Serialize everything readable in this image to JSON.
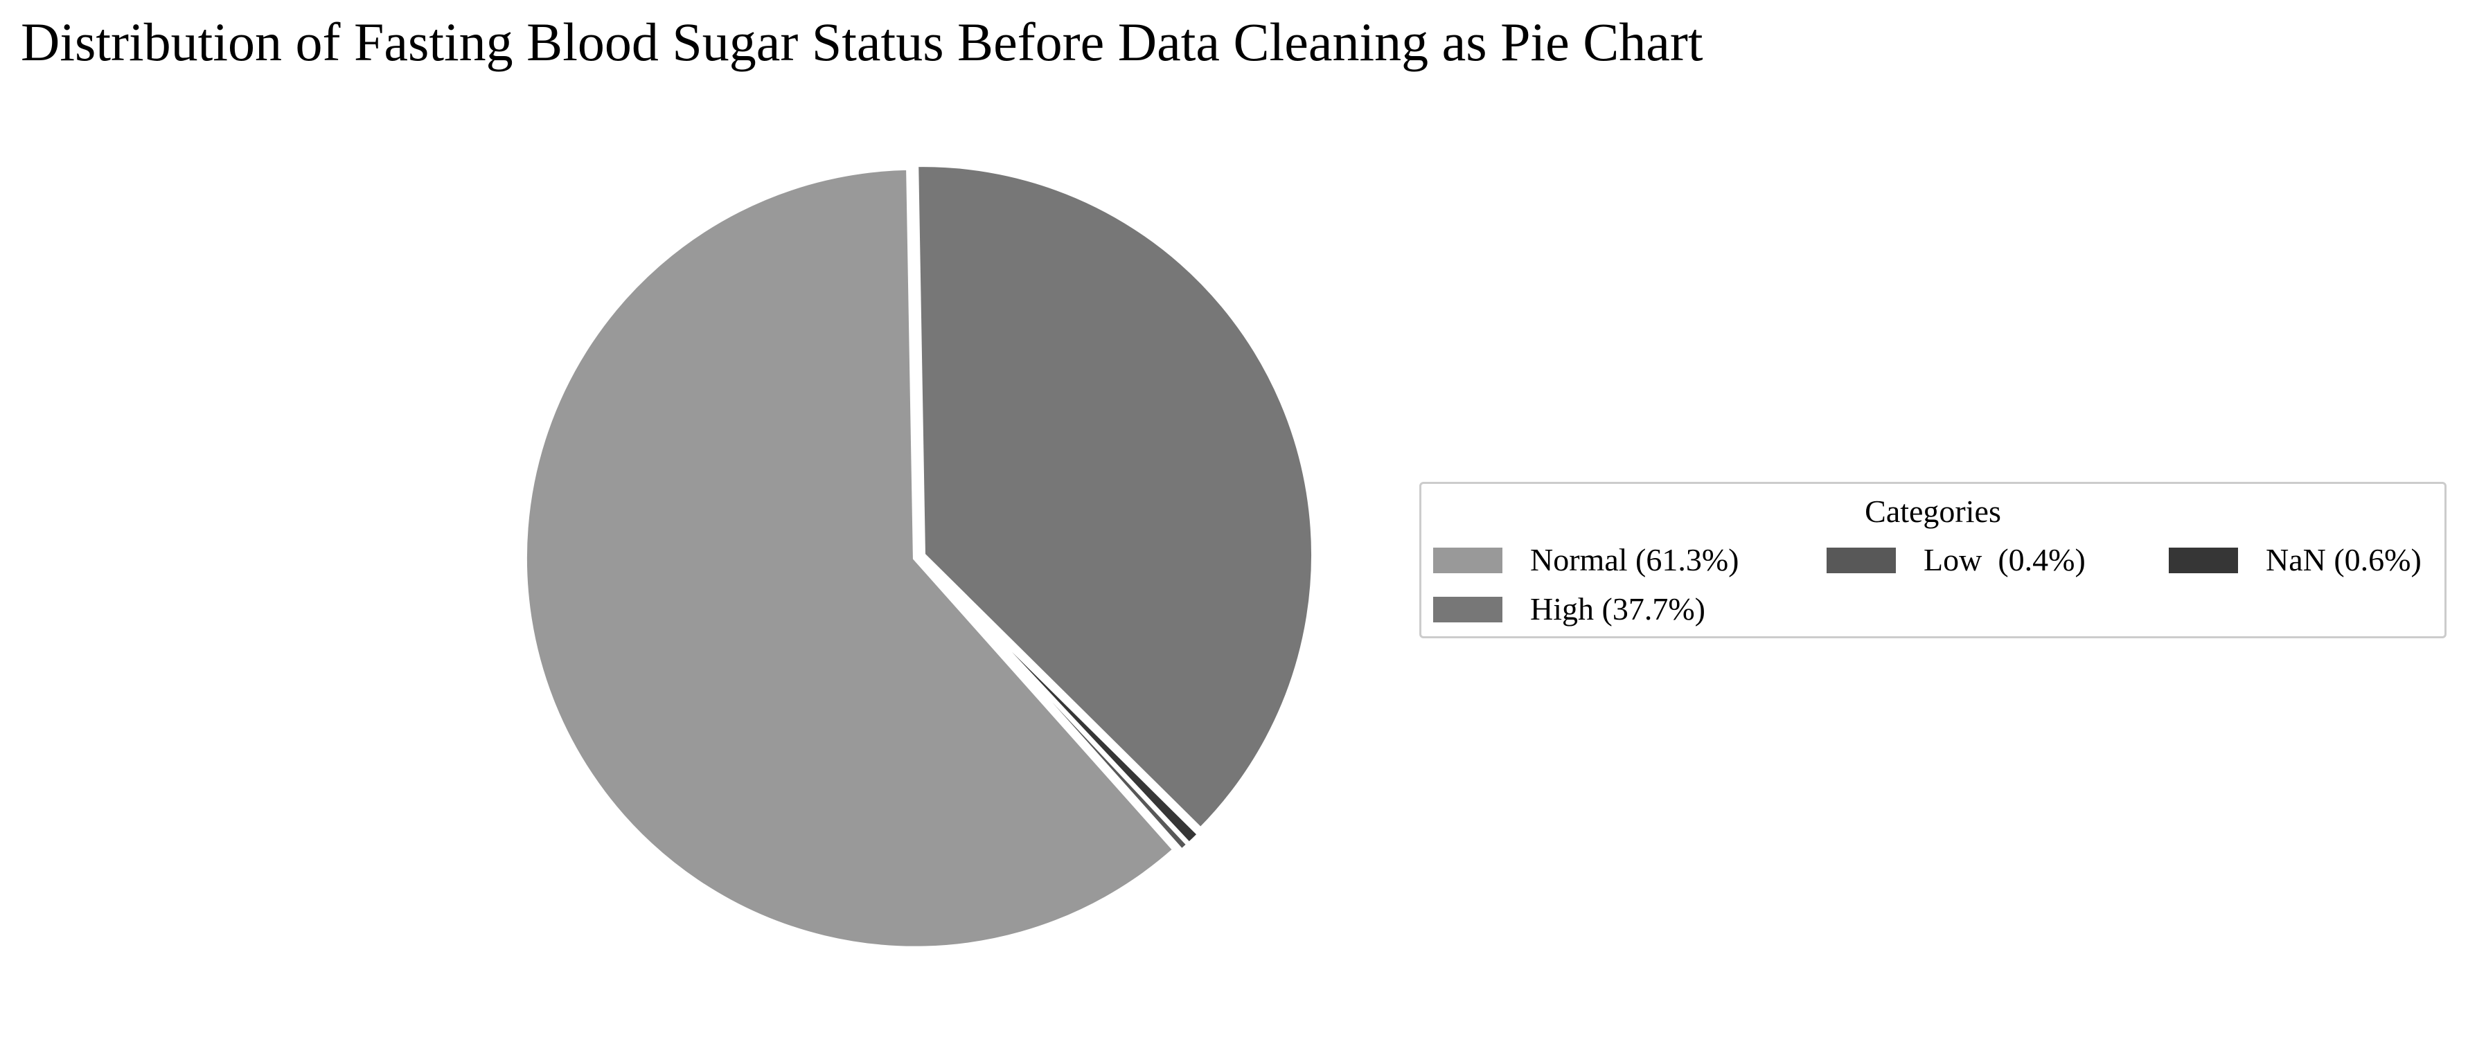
{
  "chart_data": {
    "type": "pie",
    "title": "Distribution of Fasting Blood Sugar Status Before Data Cleaning as Pie Chart",
    "slices": [
      {
        "label": "Normal",
        "value": 61.3,
        "color": "#999999",
        "legend_label": "Normal (61.3%)"
      },
      {
        "label": "Low",
        "value": 0.4,
        "color": "#585858",
        "legend_label": "Low  (0.4%)"
      },
      {
        "label": "NaN",
        "value": 0.6,
        "color": "#363636",
        "legend_label": "NaN (0.6%)"
      },
      {
        "label": "High",
        "value": 37.7,
        "color": "#777777",
        "legend_label": "High (37.7%)"
      }
    ],
    "legend": {
      "title": "Categories",
      "placement": "right",
      "columns": 3
    }
  }
}
